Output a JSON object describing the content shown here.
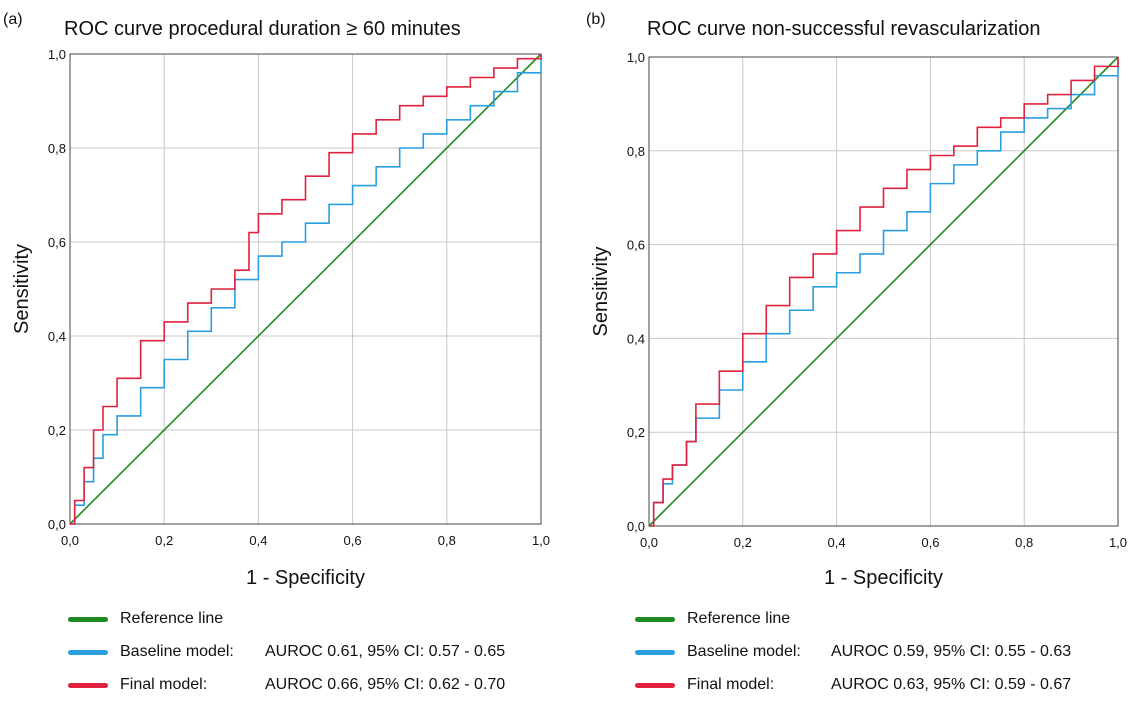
{
  "chart_data": [
    {
      "panel_label": "(a)",
      "type": "line",
      "title": "ROC curve procedural duration ≥ 60 minutes",
      "xlabel": "1 - Specificity",
      "ylabel": "Sensitivity",
      "xlim": [
        0,
        1
      ],
      "ylim": [
        0,
        1
      ],
      "grid": true,
      "ticks": [
        "0,0",
        "0,2",
        "0,4",
        "0,6",
        "0,8",
        "1,0"
      ],
      "series": [
        {
          "name": "Reference line",
          "color": "#1f8a1f",
          "x": [
            0,
            1
          ],
          "y": [
            0,
            1
          ]
        },
        {
          "name": "Baseline model:",
          "value_text": "AUROC 0.61, 95% CI: 0.57 - 0.65",
          "color": "#2a9fe0",
          "x": [
            0,
            0.01,
            0.03,
            0.05,
            0.07,
            0.1,
            0.15,
            0.2,
            0.25,
            0.3,
            0.35,
            0.4,
            0.45,
            0.5,
            0.55,
            0.6,
            0.65,
            0.7,
            0.75,
            0.8,
            0.85,
            0.9,
            0.95,
            1
          ],
          "y": [
            0,
            0.04,
            0.09,
            0.14,
            0.19,
            0.23,
            0.29,
            0.35,
            0.41,
            0.46,
            0.52,
            0.57,
            0.6,
            0.64,
            0.68,
            0.72,
            0.76,
            0.8,
            0.83,
            0.86,
            0.89,
            0.92,
            0.96,
            1
          ]
        },
        {
          "name": "Final model:",
          "value_text": "AUROC 0.66, 95% CI: 0.62 - 0.70",
          "color": "#e0223f",
          "x": [
            0,
            0.01,
            0.03,
            0.05,
            0.07,
            0.1,
            0.15,
            0.2,
            0.25,
            0.3,
            0.35,
            0.38,
            0.4,
            0.45,
            0.5,
            0.55,
            0.6,
            0.65,
            0.7,
            0.75,
            0.8,
            0.85,
            0.9,
            0.95,
            1
          ],
          "y": [
            0,
            0.05,
            0.12,
            0.2,
            0.25,
            0.31,
            0.39,
            0.43,
            0.47,
            0.5,
            0.54,
            0.62,
            0.66,
            0.69,
            0.74,
            0.79,
            0.83,
            0.86,
            0.89,
            0.91,
            0.93,
            0.95,
            0.97,
            0.99,
            1
          ]
        }
      ]
    },
    {
      "panel_label": "(b)",
      "type": "line",
      "title": "ROC curve non-successful revascularization",
      "xlabel": "1 - Specificity",
      "ylabel": "Sensitivity",
      "xlim": [
        0,
        1
      ],
      "ylim": [
        0,
        1
      ],
      "grid": true,
      "ticks": [
        "0,0",
        "0,2",
        "0,4",
        "0,6",
        "0,8",
        "1,0"
      ],
      "series": [
        {
          "name": "Reference line",
          "color": "#1f8a1f",
          "x": [
            0,
            1
          ],
          "y": [
            0,
            1
          ]
        },
        {
          "name": "Baseline model:",
          "value_text": "AUROC 0.59, 95% CI: 0.55 - 0.63",
          "color": "#2a9fe0",
          "x": [
            0,
            0.01,
            0.03,
            0.05,
            0.08,
            0.1,
            0.15,
            0.2,
            0.25,
            0.3,
            0.35,
            0.4,
            0.45,
            0.5,
            0.55,
            0.6,
            0.65,
            0.7,
            0.75,
            0.8,
            0.85,
            0.9,
            0.95,
            1
          ],
          "y": [
            0,
            0.05,
            0.09,
            0.13,
            0.18,
            0.23,
            0.29,
            0.35,
            0.41,
            0.46,
            0.51,
            0.54,
            0.58,
            0.63,
            0.67,
            0.73,
            0.77,
            0.8,
            0.84,
            0.87,
            0.89,
            0.92,
            0.96,
            1
          ]
        },
        {
          "name": "Final model:",
          "value_text": "AUROC 0.63, 95% CI: 0.59 - 0.67",
          "color": "#e0223f",
          "x": [
            0,
            0.01,
            0.03,
            0.05,
            0.08,
            0.1,
            0.15,
            0.2,
            0.25,
            0.3,
            0.35,
            0.4,
            0.45,
            0.5,
            0.55,
            0.6,
            0.65,
            0.7,
            0.75,
            0.8,
            0.85,
            0.9,
            0.95,
            1
          ],
          "y": [
            0,
            0.05,
            0.1,
            0.13,
            0.18,
            0.26,
            0.33,
            0.41,
            0.47,
            0.53,
            0.58,
            0.63,
            0.68,
            0.72,
            0.76,
            0.79,
            0.81,
            0.85,
            0.87,
            0.9,
            0.92,
            0.95,
            0.98,
            1
          ]
        }
      ]
    }
  ]
}
